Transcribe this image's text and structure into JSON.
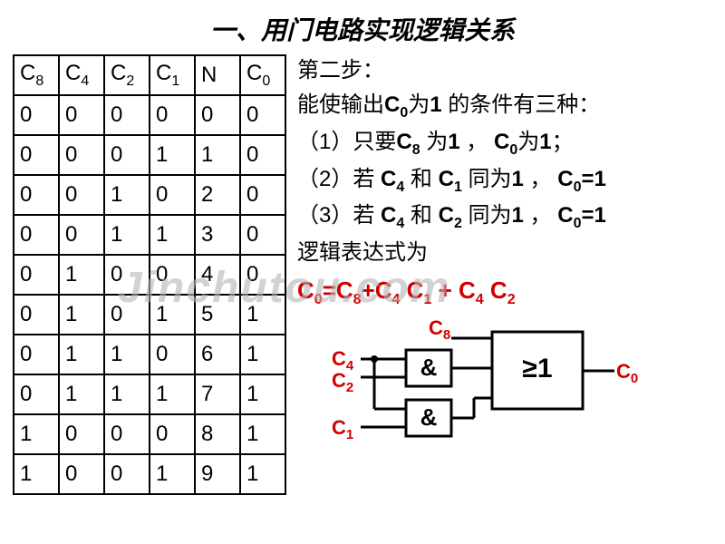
{
  "title": "一、用门电路实现逻辑关系",
  "table": {
    "headers": [
      "C8",
      "C4",
      "C2",
      "C1",
      "N",
      "C0"
    ],
    "header_subs": [
      "8",
      "4",
      "2",
      "1",
      "",
      "0"
    ],
    "rows": [
      [
        "0",
        "0",
        "0",
        "0",
        "0",
        "0"
      ],
      [
        "0",
        "0",
        "0",
        "1",
        "1",
        "0"
      ],
      [
        "0",
        "0",
        "1",
        "0",
        "2",
        "0"
      ],
      [
        "0",
        "0",
        "1",
        "1",
        "3",
        "0"
      ],
      [
        "0",
        "1",
        "0",
        "0",
        "4",
        "0"
      ],
      [
        "0",
        "1",
        "0",
        "1",
        "5",
        "1"
      ],
      [
        "0",
        "1",
        "1",
        "0",
        "6",
        "1"
      ],
      [
        "0",
        "1",
        "1",
        "1",
        "7",
        "1"
      ],
      [
        "1",
        "0",
        "0",
        "0",
        "8",
        "1"
      ],
      [
        "1",
        "0",
        "0",
        "1",
        "9",
        "1"
      ]
    ]
  },
  "text": {
    "step": "第二步：",
    "cond_intro_a": "能使输出",
    "cond_intro_b": "为",
    "cond_intro_c": " 的条件有三种：",
    "c0": "C",
    "c0_sub": "0",
    "one": "1",
    "cond1_a": "（1）只要",
    "c8": "C",
    "c8_sub": "8",
    "cond1_b": " 为",
    "cond1_c": " ，  ",
    "cond1_d": "为",
    "cond1_e": "；",
    "cond2_a": "（2）若 ",
    "c4": "C",
    "c4_sub": "4",
    "and_txt": " 和 ",
    "c1": "C",
    "c1_sub": "1",
    "cond2_b": " 同为",
    "cond2_c": " ， ",
    "eq1": "=1",
    "cond3_a": "（3）若 ",
    "c2": "C",
    "c2_sub": "2",
    "cond3_b": " 同为",
    "cond3_c": " ， ",
    "expr_label": "逻辑表达式为",
    "expr_c0": "C",
    "expr_c0s": "0",
    "expr_eq": "=",
    "expr_c8": "C",
    "expr_c8s": "8",
    "expr_p1": "+",
    "expr_c4": "C",
    "expr_c4s": "4",
    "expr_sp": " ",
    "expr_c1": "C",
    "expr_c1s": "1",
    "expr_p2": " + ",
    "expr_c2": "C",
    "expr_c2s": "2"
  },
  "circuit": {
    "labels": {
      "c8": "C",
      "c8s": "8",
      "c4": "C",
      "c4s": "4",
      "c2": "C",
      "c2s": "2",
      "c1": "C",
      "c1s": "1",
      "c0": "C",
      "c0s": "0",
      "and": "&",
      "or": "≥1"
    },
    "colors": {
      "label": "#d00000",
      "line": "#000000"
    }
  },
  "watermark": "Jinchutou.com"
}
